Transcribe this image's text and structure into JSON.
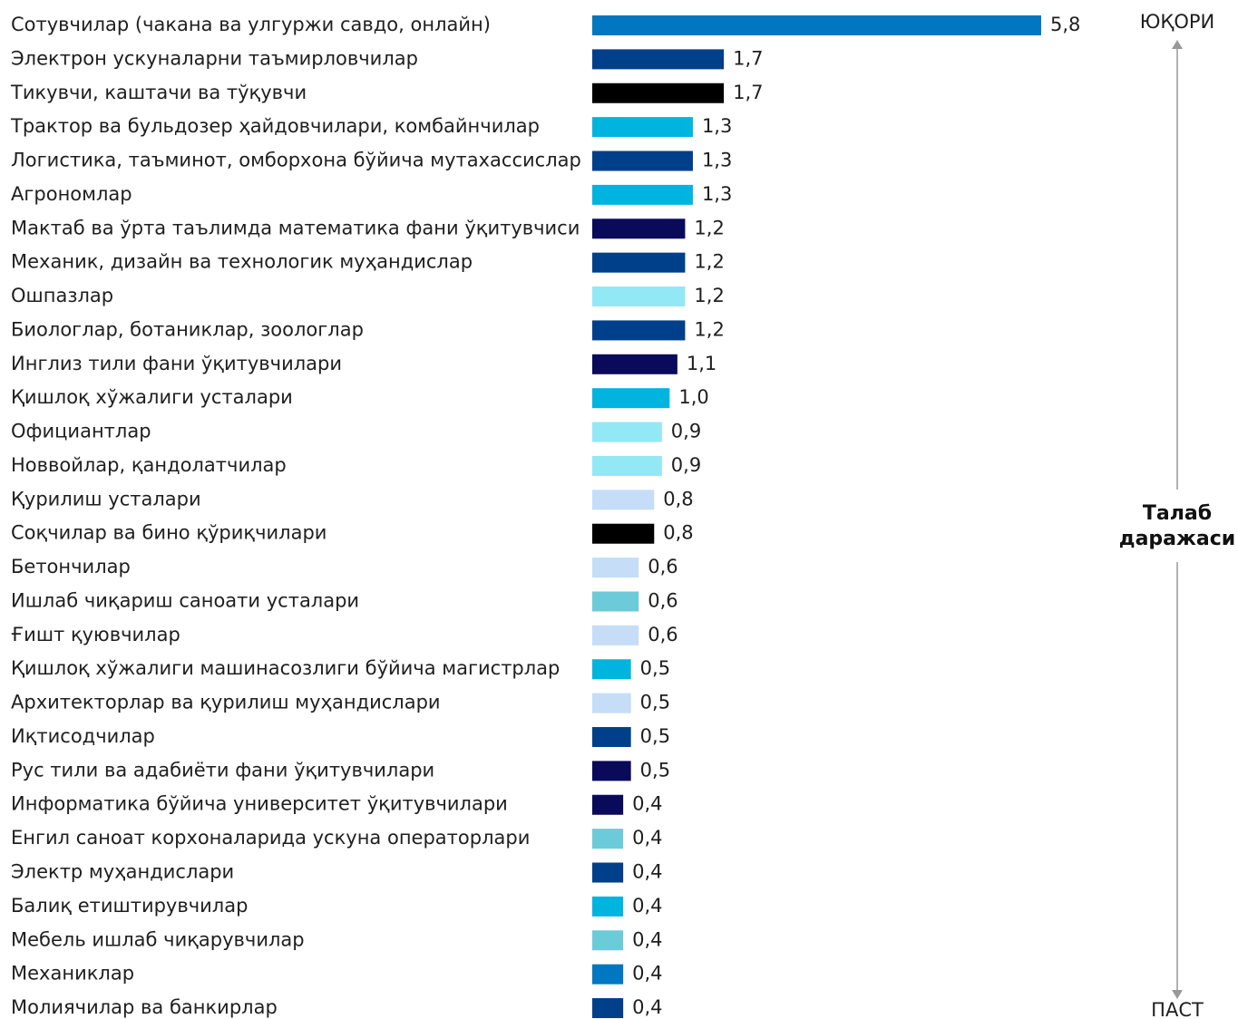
{
  "chart_data": {
    "type": "bar",
    "orientation": "horizontal",
    "categories": [
      "Сотувчилар (чакана ва улгуржи савдо, онлайн)",
      "Электрон ускуналарни таъмирловчилар",
      "Тикувчи, каштачи ва тўқувчи",
      "Трактор ва бульдозер ҳайдовчилари, комбайнчилар",
      "Логистика, таъминот, омборхона бўйича мутахассислар",
      "Агрономлар",
      "Мактаб ва ўрта таълимда математика фани ўқитувчиси",
      "Механик, дизайн ва технологик муҳандислар",
      "Ошпазлар",
      "Биологлар, ботаниклар, зоологлар",
      "Инглиз тили фани ўқитувчилари",
      "Қишлоқ хўжалиги усталари",
      "Официантлар",
      "Новвойлар, қандолатчилар",
      "Қурилиш усталари",
      "Соқчилар ва бино қўриқчилари",
      "Бетончилар",
      "Ишлаб чиқариш саноати усталари",
      "Ғишт қуювчилар",
      "Қишлоқ хўжалиги машинасозлиги бўйича магистрлар",
      "Архитекторлар ва қурилиш муҳандислари",
      "Иқтисодчилар",
      "Рус тили ва адабиёти фани ўқитувчилари",
      "Информатика бўйича университет ўқитувчилари",
      "Енгил саноат корхоналарида ускуна операторлари",
      "Электр муҳандислари",
      "Балиқ етиштирувчилар",
      "Мебель ишлаб чиқарувчилар",
      "Механиклар",
      "Молиячилар ва банкирлар"
    ],
    "values": [
      5.8,
      1.7,
      1.7,
      1.3,
      1.3,
      1.3,
      1.2,
      1.2,
      1.2,
      1.2,
      1.1,
      1.0,
      0.9,
      0.9,
      0.8,
      0.8,
      0.6,
      0.6,
      0.6,
      0.5,
      0.5,
      0.5,
      0.5,
      0.4,
      0.4,
      0.4,
      0.4,
      0.4,
      0.4,
      0.4
    ],
    "value_labels": [
      "5,8",
      "1,7",
      "1,7",
      "1,3",
      "1,3",
      "1,3",
      "1,2",
      "1,2",
      "1,2",
      "1,2",
      "1,1",
      "1,0",
      "0,9",
      "0,9",
      "0,8",
      "0,8",
      "0,6",
      "0,6",
      "0,6",
      "0,5",
      "0,5",
      "0,5",
      "0,5",
      "0,4",
      "0,4",
      "0,4",
      "0,4",
      "0,4",
      "0,4",
      "0,4"
    ],
    "colors": [
      "#0077c0",
      "#003f8a",
      "#000000",
      "#00b4e0",
      "#003f8a",
      "#00b4e0",
      "#0a0a5a",
      "#003f8a",
      "#93e8f5",
      "#003f8a",
      "#0a0a5a",
      "#00b4e0",
      "#93e8f5",
      "#93e8f5",
      "#c5ddf7",
      "#000000",
      "#c5ddf7",
      "#6ccbd8",
      "#c5ddf7",
      "#00b4e0",
      "#c5ddf7",
      "#003f8a",
      "#0a0a5a",
      "#0a0a5a",
      "#6ccbd8",
      "#003f8a",
      "#00b4e0",
      "#6ccbd8",
      "#0077c0",
      "#003f8a"
    ],
    "scale_top": "ЮҚОРИ",
    "scale_label": "Талаб даражаси",
    "scale_bottom": "ПАСТ"
  }
}
